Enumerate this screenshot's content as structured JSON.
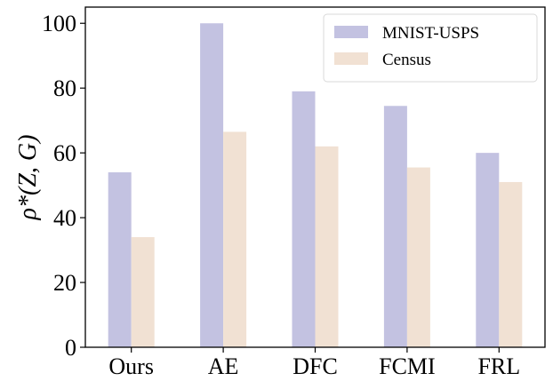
{
  "chart_data": {
    "type": "bar",
    "title": "",
    "xlabel": "",
    "ylabel": "ρ*(Z, G)",
    "categories": [
      "Ours",
      "AE",
      "DFC",
      "FCMI",
      "FRL"
    ],
    "series": [
      {
        "name": "MNIST-USPS",
        "values": [
          54,
          100,
          79,
          74.5,
          60
        ],
        "color": "#c3c2e1"
      },
      {
        "name": "Census",
        "values": [
          34,
          66.5,
          62,
          55.5,
          51
        ],
        "color": "#f1e1d3"
      }
    ],
    "ylim": [
      0,
      105
    ],
    "yticks": [
      0,
      20,
      40,
      60,
      80,
      100
    ],
    "ytick_labels": [
      "0",
      "20",
      "40",
      "60",
      "80",
      "100"
    ],
    "legend_position": "top-right",
    "grid": false
  }
}
